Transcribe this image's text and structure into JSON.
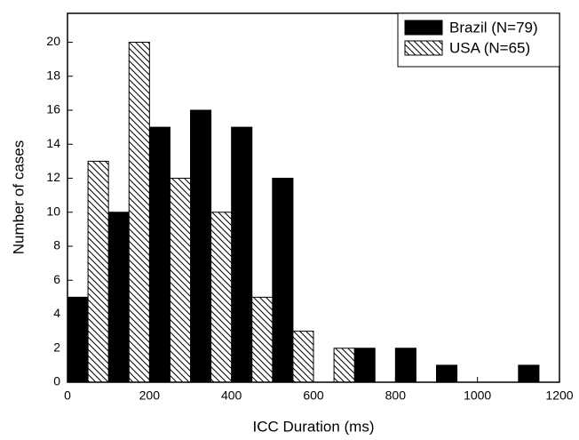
{
  "chart_data": {
    "type": "histogram",
    "x_label": "ICC Duration (ms)",
    "y_label": "Number of cases",
    "bins": [
      0,
      100,
      200,
      300,
      400,
      500,
      600,
      700,
      800,
      900,
      1000,
      1100,
      1200
    ],
    "series": [
      {
        "name": "Brazil (N=79)",
        "color": "#000000",
        "hatch": false,
        "values": [
          5,
          10,
          15,
          16,
          15,
          12,
          0,
          2,
          2,
          1,
          0,
          1
        ]
      },
      {
        "name": "USA (N=65)",
        "color": "#000000",
        "hatch": true,
        "values": [
          13,
          20,
          12,
          10,
          5,
          3,
          2,
          0,
          0,
          0,
          0,
          0
        ]
      }
    ],
    "xlim": [
      0,
      1200
    ],
    "xticks": [
      0,
      200,
      400,
      600,
      800,
      1000,
      1200
    ],
    "ylim": [
      0,
      21.7
    ],
    "yticks": [
      0,
      2,
      4,
      6,
      8,
      10,
      12,
      14,
      16,
      18,
      20
    ],
    "grid": false,
    "legend": "upper right"
  }
}
